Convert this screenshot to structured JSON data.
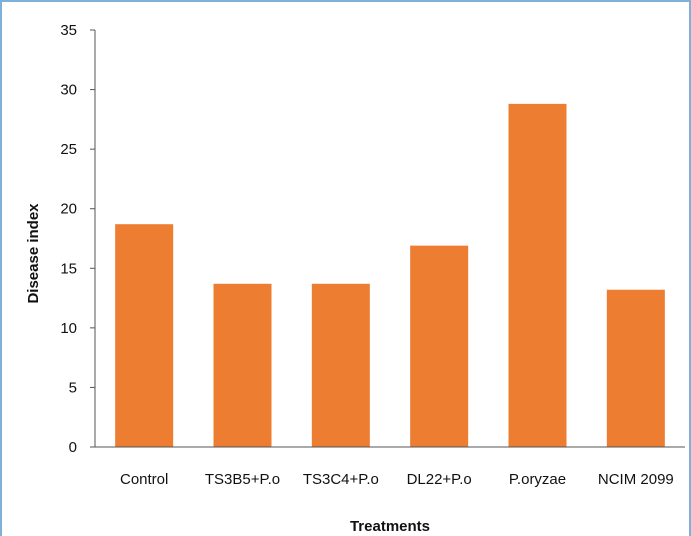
{
  "chart_data": {
    "type": "bar",
    "title": "",
    "xlabel": "Treatments",
    "ylabel": "Disease index",
    "categories": [
      "Control",
      "TS3B5+P.o",
      "TS3C4+P.o",
      "DL22+P.o",
      "P.oryzae",
      "NCIM 2099"
    ],
    "values": [
      18.7,
      13.7,
      13.7,
      16.9,
      28.8,
      13.2
    ],
    "ylim": [
      0,
      35
    ],
    "yticks": [
      0,
      5,
      10,
      15,
      20,
      25,
      30,
      35
    ],
    "grid": false,
    "legend": "none",
    "bar_color": "#ED7D31"
  }
}
